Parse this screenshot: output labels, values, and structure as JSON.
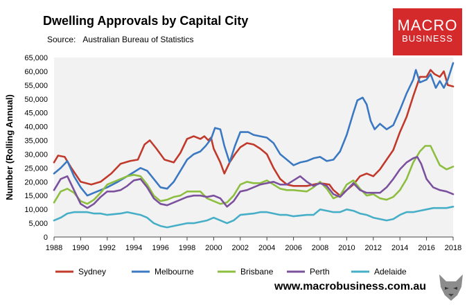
{
  "header": {
    "title": "Dwelling Approvals by Capital City",
    "source_label": "Source:",
    "source_value": "Australian Bureau of Statistics"
  },
  "logo": {
    "line1": "MACRO",
    "line2": "BUSINESS",
    "color": "#d42a2c"
  },
  "footer": {
    "url": "www.macrobusiness.com.au"
  },
  "chart_data": {
    "type": "line",
    "title": "Dwelling Approvals by Capital City",
    "xlabel": "",
    "ylabel": "Number (Rolling Annual)",
    "xlim": [
      1988,
      2018
    ],
    "ylim": [
      0,
      65000
    ],
    "yticks": [
      0,
      5000,
      10000,
      15000,
      20000,
      25000,
      30000,
      35000,
      40000,
      45000,
      50000,
      55000,
      60000,
      65000
    ],
    "ytick_labels": [
      "0",
      "5,000",
      "10,000",
      "15,000",
      "20,000",
      "25,000",
      "30,000",
      "35,000",
      "40,000",
      "45,000",
      "50,000",
      "55,000",
      "60,000",
      "65,000"
    ],
    "xticks": [
      1988,
      1990,
      1992,
      1994,
      1996,
      1998,
      2000,
      2002,
      2004,
      2006,
      2008,
      2010,
      2012,
      2014,
      2016,
      2018
    ],
    "xtick_labels": [
      "1988",
      "1990",
      "1992",
      "1994",
      "1996",
      "1998",
      "2000",
      "2002",
      "2004",
      "2006",
      "2008",
      "2010",
      "2012",
      "2014",
      "2016",
      "2018"
    ],
    "legend_position": "bottom",
    "grid": false,
    "series": [
      {
        "name": "Sydney",
        "color": "#c0392b",
        "x": [
          1988,
          1988.3,
          1988.8,
          1989.3,
          1990,
          1990.8,
          1991.5,
          1992.3,
          1993,
          1993.7,
          1994.3,
          1994.8,
          1995.2,
          1995.7,
          1996.3,
          1997,
          1997.5,
          1998,
          1998.5,
          1999,
          1999.3,
          1999.6,
          1999.8,
          2000,
          2000.5,
          2000.8,
          2001.2,
          2001.6,
          2002,
          2002.5,
          2003,
          2003.5,
          2004,
          2004.5,
          2005,
          2005.5,
          2006,
          2007,
          2008,
          2008.7,
          2009,
          2009.5,
          2010,
          2010.5,
          2011,
          2011.5,
          2012,
          2012.5,
          2013,
          2013.5,
          2014,
          2014.5,
          2015,
          2015.5,
          2016,
          2016.3,
          2016.6,
          2017,
          2017.3,
          2017.6,
          2018
        ],
        "values": [
          27000,
          29500,
          29000,
          25000,
          20000,
          19000,
          20000,
          23000,
          26500,
          27500,
          28000,
          33500,
          35000,
          32000,
          28000,
          27000,
          30500,
          35500,
          36500,
          35500,
          36500,
          35000,
          36000,
          32000,
          27000,
          23000,
          27000,
          30000,
          32500,
          34000,
          33500,
          32000,
          30000,
          25000,
          21000,
          19000,
          18500,
          18500,
          19500,
          19000,
          17000,
          15000,
          17000,
          19000,
          22000,
          23000,
          22000,
          24500,
          28000,
          31500,
          38000,
          43500,
          51000,
          58000,
          58000,
          60500,
          59000,
          58000,
          60000,
          55000,
          54500
        ]
      },
      {
        "name": "Melbourne",
        "color": "#3b78c2",
        "x": [
          1988,
          1988.5,
          1989,
          1989.5,
          1990,
          1990.5,
          1991,
          1991.5,
          1992,
          1992.8,
          1993.5,
          1994,
          1994.5,
          1995,
          1995.5,
          1996,
          1996.5,
          1997,
          1997.5,
          1998,
          1998.5,
          1999,
          1999.4,
          1999.8,
          2000.1,
          2000.5,
          2000.8,
          2001.2,
          2001.6,
          2002,
          2002.6,
          2003,
          2003.5,
          2004,
          2004.5,
          2005,
          2005.5,
          2006,
          2006.5,
          2007,
          2007.5,
          2008,
          2008.5,
          2009,
          2009.5,
          2010,
          2010.5,
          2010.8,
          2011.2,
          2011.5,
          2011.8,
          2012.1,
          2012.5,
          2013,
          2013.5,
          2014,
          2014.5,
          2015,
          2015.2,
          2015.5,
          2016,
          2016.3,
          2016.7,
          2017,
          2017.3,
          2017.6,
          2017.8,
          2018
        ],
        "values": [
          23000,
          25000,
          27500,
          22000,
          18000,
          15000,
          16000,
          17000,
          18000,
          20000,
          22000,
          23500,
          25000,
          24000,
          21000,
          18000,
          17500,
          20000,
          24000,
          28000,
          30000,
          31000,
          33000,
          35500,
          39500,
          39000,
          33000,
          27000,
          33000,
          38000,
          38000,
          37000,
          36500,
          36000,
          34000,
          30000,
          28000,
          26000,
          27000,
          27500,
          28500,
          29000,
          27500,
          28000,
          31000,
          37000,
          45000,
          49500,
          50500,
          48000,
          42000,
          39000,
          41000,
          39000,
          40500,
          46000,
          52000,
          57000,
          60500,
          56000,
          57000,
          59000,
          54000,
          56500,
          54000,
          57000,
          60000,
          63000
        ]
      },
      {
        "name": "Brisbane",
        "color": "#8dbe3f",
        "x": [
          1988,
          1988.5,
          1989,
          1989.5,
          1990,
          1990.5,
          1991,
          1991.5,
          1992,
          1993,
          1993.5,
          1994,
          1994.5,
          1995,
          1995.5,
          1996,
          1996.5,
          1997,
          1997.5,
          1998,
          1998.5,
          1999,
          1999.5,
          2000,
          2000.5,
          2001,
          2001.5,
          2002,
          2002.5,
          2003,
          2003.5,
          2004,
          2004.5,
          2005,
          2005.5,
          2006,
          2007,
          2007.5,
          2008,
          2008.5,
          2009,
          2009.5,
          2010,
          2010.5,
          2011,
          2011.5,
          2012,
          2012.5,
          2013,
          2013.5,
          2014,
          2014.5,
          2015,
          2015.5,
          2015.9,
          2016.3,
          2016.7,
          2017,
          2017.5,
          2018
        ],
        "values": [
          12500,
          16500,
          17500,
          16000,
          13000,
          12000,
          13500,
          16000,
          19000,
          21000,
          22000,
          22500,
          22000,
          19000,
          15000,
          13000,
          13500,
          14500,
          15000,
          16500,
          16500,
          16500,
          14000,
          13000,
          12000,
          12500,
          15000,
          19000,
          20000,
          19500,
          19500,
          20500,
          19000,
          17500,
          17000,
          17000,
          16500,
          18000,
          20000,
          17500,
          14000,
          15000,
          19000,
          20500,
          17500,
          15000,
          15500,
          14000,
          13500,
          14500,
          17000,
          21000,
          27000,
          31000,
          33000,
          33000,
          29000,
          26000,
          24500,
          25500
        ]
      },
      {
        "name": "Perth",
        "color": "#7b519e",
        "x": [
          1988,
          1988.5,
          1989,
          1989.5,
          1990,
          1990.5,
          1991,
          1991.5,
          1992,
          1992.5,
          1993,
          1993.5,
          1994,
          1994.5,
          1995,
          1995.5,
          1996,
          1996.5,
          1997,
          1997.5,
          1998,
          1998.5,
          1999,
          1999.5,
          2000,
          2000.5,
          2001,
          2001.5,
          2002,
          2002.5,
          2003,
          2003.5,
          2004,
          2004.5,
          2005,
          2005.5,
          2006,
          2006.5,
          2007,
          2007.5,
          2008,
          2008.5,
          2009,
          2009.5,
          2010,
          2010.5,
          2011,
          2011.5,
          2012,
          2012.5,
          2013,
          2013.5,
          2014,
          2014.5,
          2015,
          2015.3,
          2015.6,
          2016,
          2016.5,
          2017,
          2017.5,
          2018
        ],
        "values": [
          17000,
          21000,
          22000,
          17000,
          12000,
          10500,
          12000,
          14500,
          16500,
          16500,
          17000,
          18500,
          20500,
          21000,
          18000,
          14000,
          12000,
          11500,
          12500,
          13500,
          14500,
          15000,
          15000,
          14500,
          15000,
          14000,
          11000,
          13000,
          16500,
          17000,
          18000,
          19000,
          19500,
          20000,
          19000,
          19000,
          20500,
          22000,
          20000,
          18500,
          19500,
          18500,
          15500,
          14500,
          17000,
          19500,
          17000,
          16000,
          16000,
          16000,
          18000,
          21000,
          24500,
          27000,
          28500,
          29000,
          26500,
          21000,
          18000,
          17000,
          16500,
          15500
        ]
      },
      {
        "name": "Adelaide",
        "color": "#46aec6",
        "x": [
          1988,
          1988.5,
          1989,
          1989.5,
          1990,
          1990.5,
          1991,
          1991.5,
          1992,
          1993,
          1993.5,
          1994,
          1994.5,
          1995,
          1995.5,
          1996,
          1996.5,
          1997,
          1997.5,
          1998,
          1998.5,
          1999,
          1999.5,
          2000,
          2000.5,
          2001,
          2001.5,
          2002,
          2003,
          2003.5,
          2004,
          2004.5,
          2005,
          2005.5,
          2006,
          2007,
          2007.5,
          2008,
          2008.5,
          2009,
          2009.5,
          2010,
          2010.5,
          2011,
          2011.5,
          2012,
          2012.5,
          2013,
          2013.5,
          2014,
          2014.5,
          2015,
          2015.5,
          2016,
          2016.5,
          2017,
          2017.5,
          2018
        ],
        "values": [
          6000,
          7000,
          8500,
          9000,
          9000,
          9000,
          8500,
          8500,
          8000,
          8500,
          9000,
          8500,
          8000,
          7000,
          5000,
          4000,
          3500,
          4000,
          4500,
          5000,
          5000,
          5500,
          6000,
          7000,
          6000,
          5000,
          6000,
          8000,
          8500,
          9000,
          9000,
          8500,
          8000,
          8000,
          7500,
          8000,
          8000,
          10000,
          9500,
          9000,
          9000,
          10000,
          9500,
          8500,
          8000,
          7000,
          6500,
          6000,
          6500,
          8000,
          9000,
          9000,
          9500,
          10000,
          10500,
          10500,
          10500,
          11000
        ]
      }
    ]
  }
}
